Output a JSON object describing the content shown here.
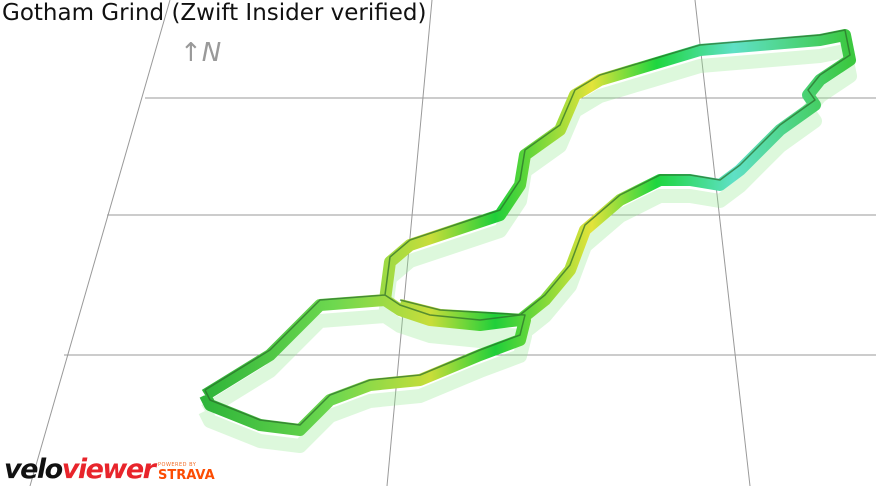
{
  "title": "Gotham Grind (Zwift Insider verified)",
  "compass": "N",
  "logo": {
    "brand_part1": "velo",
    "brand_part2": "viewer",
    "powered_by": "POWERED BY",
    "partner": "STRAVA"
  }
}
